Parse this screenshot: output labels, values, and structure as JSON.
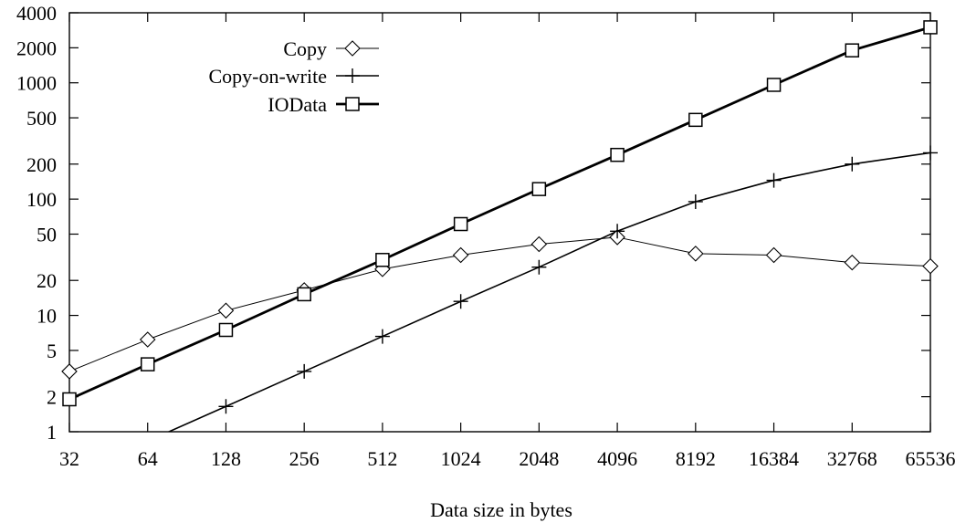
{
  "chart_data": {
    "type": "line",
    "title": "",
    "xlabel": "Data size in bytes",
    "ylabel": "",
    "x_scale": "log2",
    "y_scale": "log10",
    "xlim": [
      32,
      65536
    ],
    "ylim": [
      1,
      4000
    ],
    "x": [
      32,
      64,
      128,
      256,
      512,
      1024,
      2048,
      4096,
      8192,
      16384,
      32768,
      65536
    ],
    "x_tick_labels": [
      "32",
      "64",
      "128",
      "256",
      "512",
      "1024",
      "2048",
      "4096",
      "8192",
      "16384",
      "32768",
      "65536"
    ],
    "y_ticks": [
      1,
      2,
      5,
      10,
      20,
      50,
      100,
      200,
      500,
      1000,
      2000,
      4000
    ],
    "y_tick_labels": [
      "1",
      "2",
      "5",
      "10",
      "20",
      "50",
      "100",
      "200",
      "500",
      "1000",
      "2000",
      "4000"
    ],
    "grid": false,
    "legend_position": "top-left",
    "series": [
      {
        "name": "Copy",
        "marker": "diamond",
        "line": "thin",
        "values": [
          3.3,
          6.2,
          11,
          16.5,
          25,
          33,
          41,
          47,
          34,
          33,
          28.5,
          26.5
        ]
      },
      {
        "name": "Copy-on-write",
        "marker": "plus",
        "line": "medium",
        "values": [
          0.82,
          0.83,
          1.65,
          3.3,
          6.6,
          13.2,
          26,
          53,
          95,
          145,
          200,
          250
        ]
      },
      {
        "name": "IOData",
        "marker": "square",
        "line": "thick",
        "values": [
          1.9,
          3.8,
          7.5,
          15.2,
          30,
          61,
          122,
          240,
          480,
          960,
          1900,
          3000
        ]
      }
    ]
  }
}
